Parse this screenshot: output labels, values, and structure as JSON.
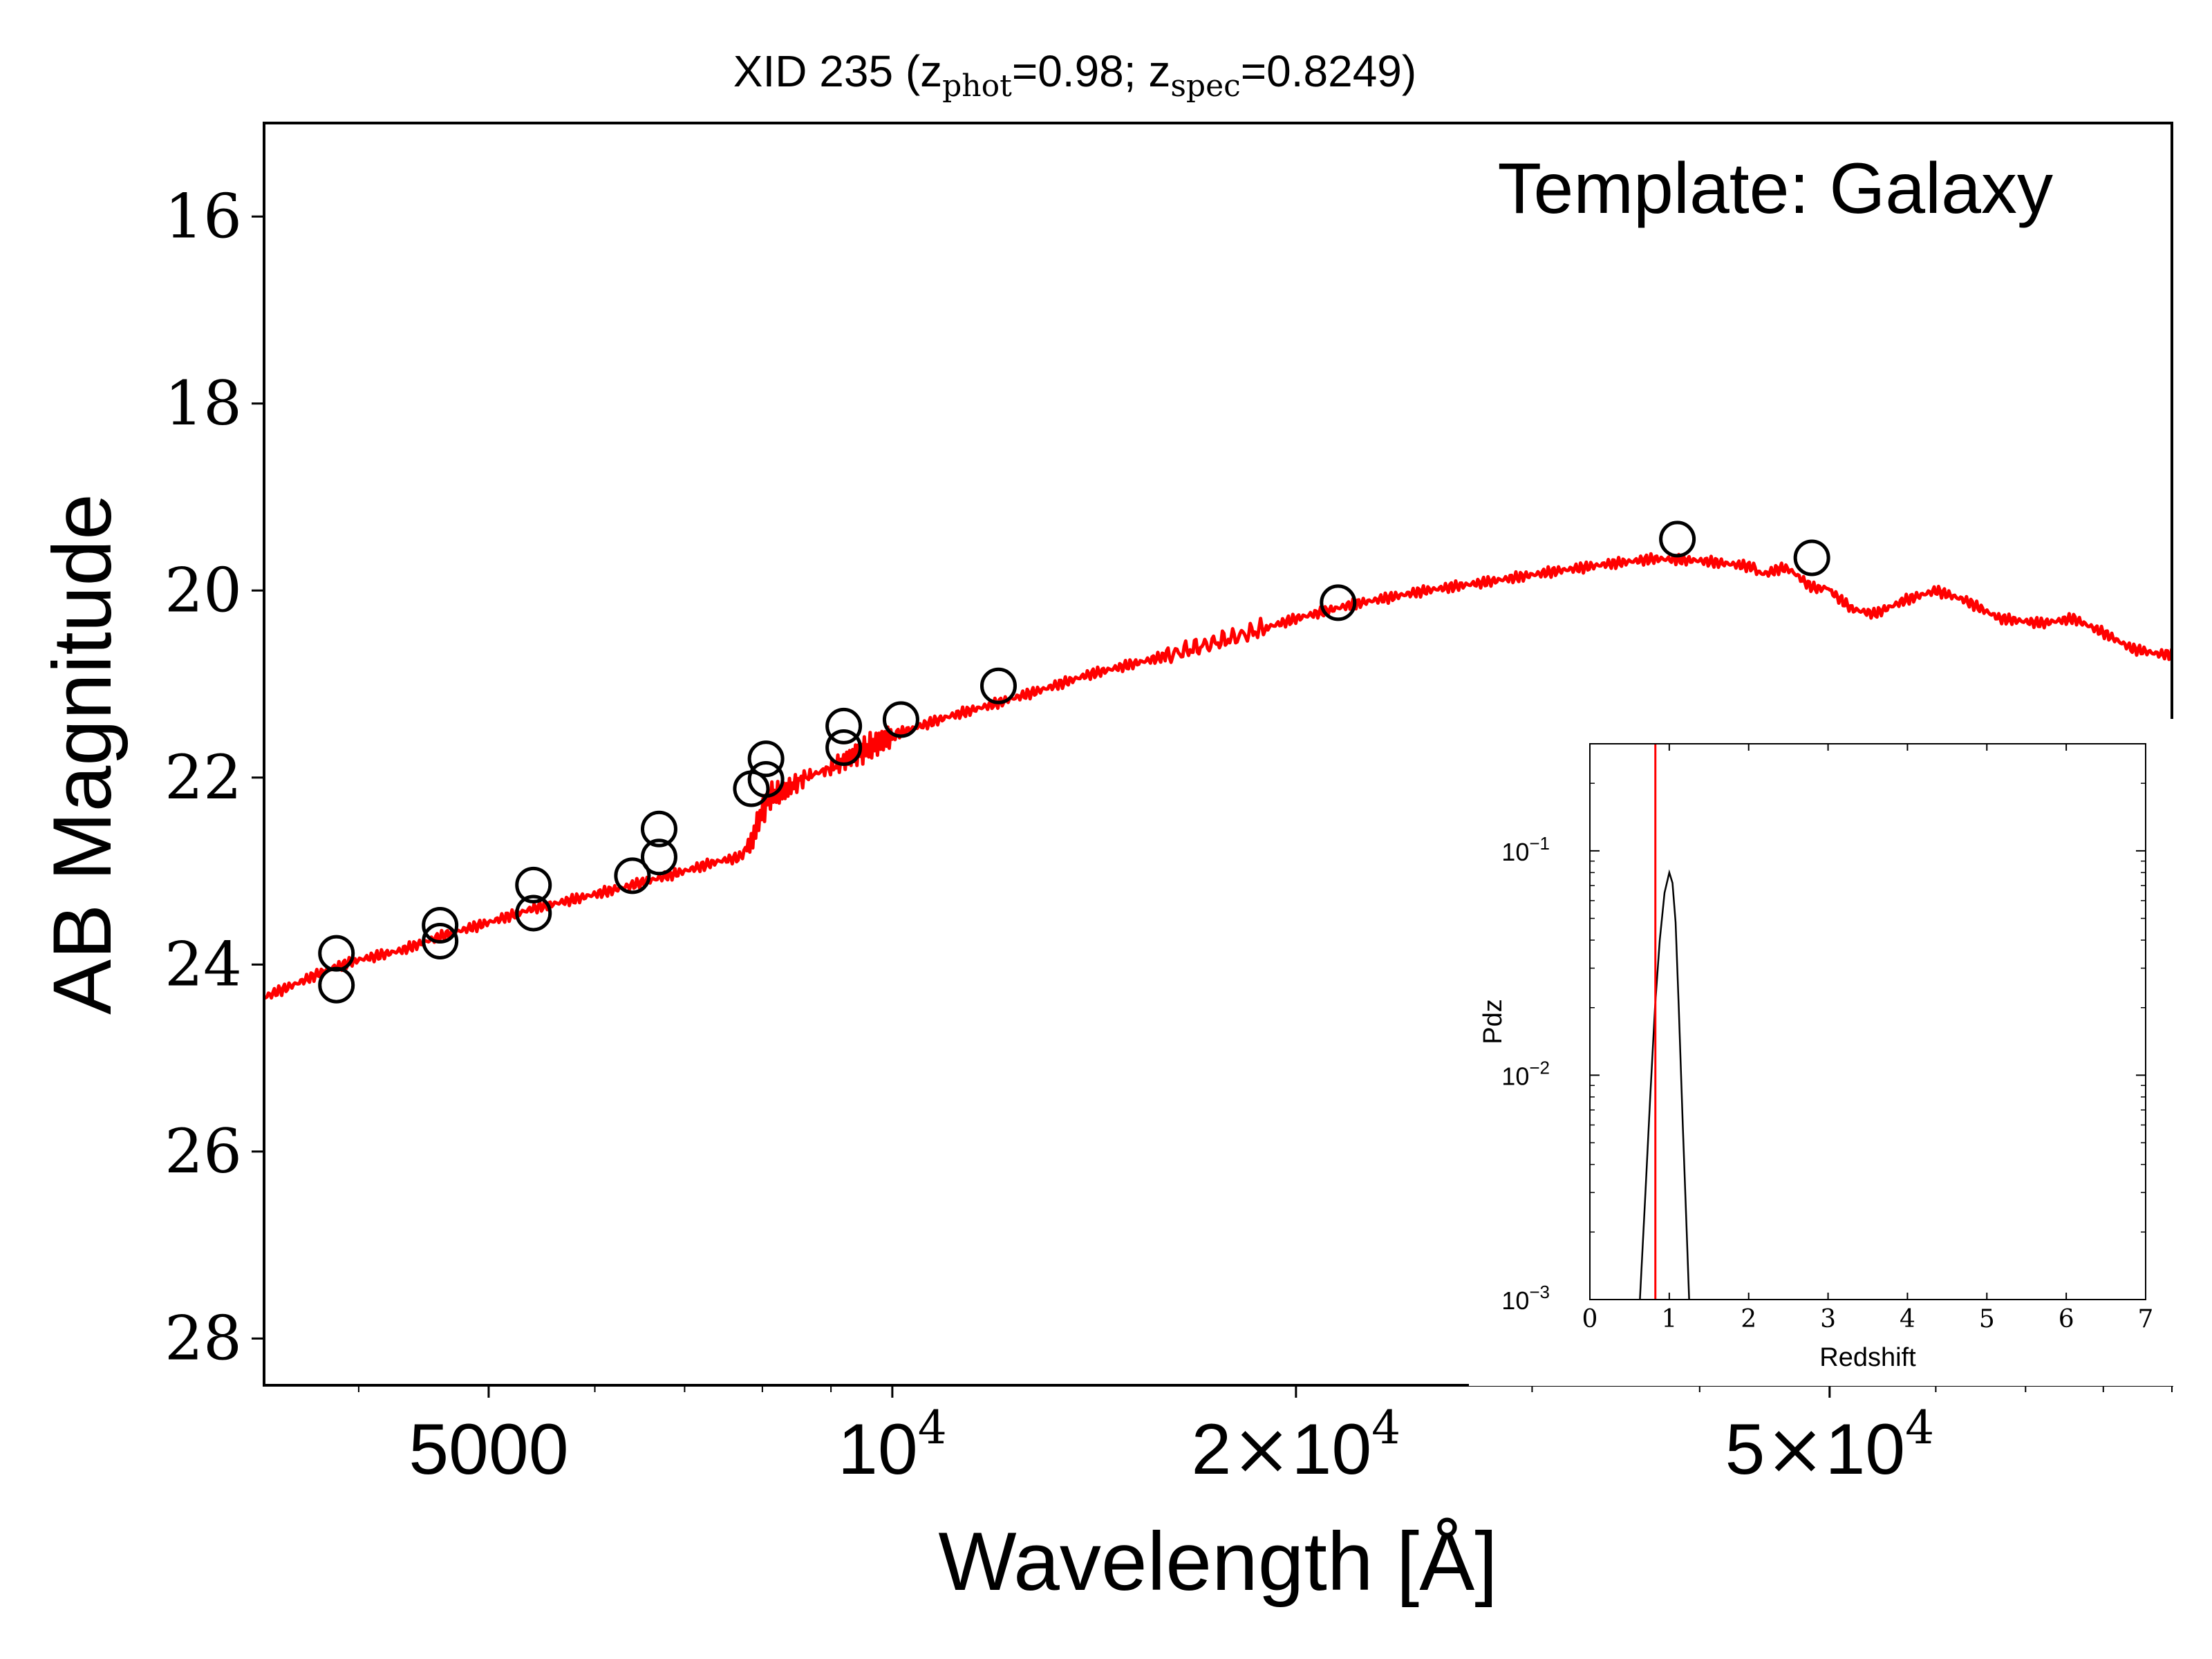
{
  "chart_data": [
    {
      "type": "line",
      "title": {
        "prefix": "XID 235 (z",
        "sub1": "phot",
        "mid": "=0.98; z",
        "sub2": "spec",
        "suffix": "=0.8249)"
      },
      "xlabel": "Wavelength [Å]",
      "ylabel": "AB Magnitude",
      "annotation": "Template: Galaxy",
      "x_scale": "log",
      "xlim": [
        3400,
        90000
      ],
      "ylim": [
        28.5,
        15.0
      ],
      "y_inverted": true,
      "x_ticks": [
        {
          "value": 5000,
          "label": "5000"
        },
        {
          "value": 10000,
          "base": "10",
          "exp": "4"
        },
        {
          "value": 20000,
          "mant": "2",
          "times": "×",
          "base": "10",
          "exp": "4"
        },
        {
          "value": 50000,
          "mant": "5",
          "times": "×",
          "base": "10",
          "exp": "4"
        }
      ],
      "x_minor_ticks": [
        4000,
        6000,
        7000,
        8000,
        9000,
        30000,
        40000,
        60000,
        70000,
        80000,
        90000
      ],
      "y_ticks": [
        16,
        18,
        20,
        22,
        24,
        26,
        28
      ],
      "colors": {
        "model": "#ff0000",
        "points": "#000000"
      },
      "series": [
        {
          "kind": "model-line",
          "points": [
            [
              3400,
              24.35
            ],
            [
              3600,
              24.2
            ],
            [
              3800,
              24.05
            ],
            [
              4000,
              23.95
            ],
            [
              4300,
              23.85
            ],
            [
              4600,
              23.7
            ],
            [
              5000,
              23.55
            ],
            [
              5400,
              23.4
            ],
            [
              5800,
              23.3
            ],
            [
              6200,
              23.2
            ],
            [
              6600,
              23.1
            ],
            [
              7000,
              23.0
            ],
            [
              7400,
              22.9
            ],
            [
              7700,
              22.85
            ],
            [
              7850,
              22.7
            ],
            [
              7950,
              22.45
            ],
            [
              8100,
              22.2
            ],
            [
              8300,
              22.15
            ],
            [
              8600,
              22.0
            ],
            [
              9000,
              21.9
            ],
            [
              9400,
              21.75
            ],
            [
              10000,
              21.55
            ],
            [
              11000,
              21.35
            ],
            [
              12000,
              21.2
            ],
            [
              13000,
              21.05
            ],
            [
              14000,
              20.9
            ],
            [
              16000,
              20.7
            ],
            [
              18000,
              20.5
            ],
            [
              20000,
              20.3
            ],
            [
              22000,
              20.15
            ],
            [
              25000,
              20.0
            ],
            [
              28000,
              19.9
            ],
            [
              31000,
              19.8
            ],
            [
              34000,
              19.72
            ],
            [
              37000,
              19.66
            ],
            [
              40000,
              19.68
            ],
            [
              43000,
              19.73
            ],
            [
              46000,
              19.8
            ],
            [
              48000,
              19.88
            ],
            [
              50000,
              20.0
            ],
            [
              52000,
              20.2
            ],
            [
              54000,
              20.25
            ],
            [
              57000,
              20.1
            ],
            [
              60000,
              20.0
            ],
            [
              63000,
              20.1
            ],
            [
              67000,
              20.3
            ],
            [
              72000,
              20.35
            ],
            [
              76000,
              20.3
            ],
            [
              80000,
              20.45
            ],
            [
              84000,
              20.62
            ],
            [
              88000,
              20.68
            ],
            [
              90000,
              20.68
            ]
          ]
        },
        {
          "kind": "photometry",
          "points": [
            [
              3850,
              23.88
            ],
            [
              3850,
              24.22
            ],
            [
              4600,
              23.58
            ],
            [
              4600,
              23.75
            ],
            [
              5400,
              23.15
            ],
            [
              5400,
              23.45
            ],
            [
              6400,
              23.05
            ],
            [
              6700,
              22.55
            ],
            [
              6700,
              22.85
            ],
            [
              7850,
              22.12
            ],
            [
              8050,
              21.8
            ],
            [
              8050,
              22.02
            ],
            [
              9200,
              21.45
            ],
            [
              9200,
              21.68
            ],
            [
              10150,
              21.38
            ],
            [
              12000,
              21.02
            ],
            [
              21500,
              20.13
            ],
            [
              38500,
              19.45
            ],
            [
              48500,
              19.65
            ]
          ]
        }
      ]
    },
    {
      "type": "line",
      "xlabel": "Redshift",
      "ylabel": "Pdz",
      "xlim": [
        0,
        7
      ],
      "y_scale": "log",
      "ylim": [
        0.001,
        0.3
      ],
      "x_ticks": [
        0,
        1,
        2,
        3,
        4,
        5,
        6,
        7
      ],
      "y_ticks": [
        {
          "value": 0.1,
          "base": "10",
          "exp": "−1"
        },
        {
          "value": 0.01,
          "base": "10",
          "exp": "−2"
        },
        {
          "value": 0.001,
          "base": "10",
          "exp": "−3"
        }
      ],
      "colors": {
        "pdz": "#000000",
        "zspec_marker": "#ff0000"
      },
      "zspec_marker": 0.8249,
      "series": [
        {
          "kind": "pdz",
          "points": [
            [
              0.63,
              0.001
            ],
            [
              0.7,
              0.003
            ],
            [
              0.76,
              0.008
            ],
            [
              0.82,
              0.02
            ],
            [
              0.88,
              0.04
            ],
            [
              0.94,
              0.065
            ],
            [
              1.0,
              0.08
            ],
            [
              1.04,
              0.072
            ],
            [
              1.08,
              0.048
            ],
            [
              1.12,
              0.02
            ],
            [
              1.17,
              0.006
            ],
            [
              1.22,
              0.002
            ],
            [
              1.25,
              0.001
            ]
          ]
        }
      ]
    }
  ]
}
